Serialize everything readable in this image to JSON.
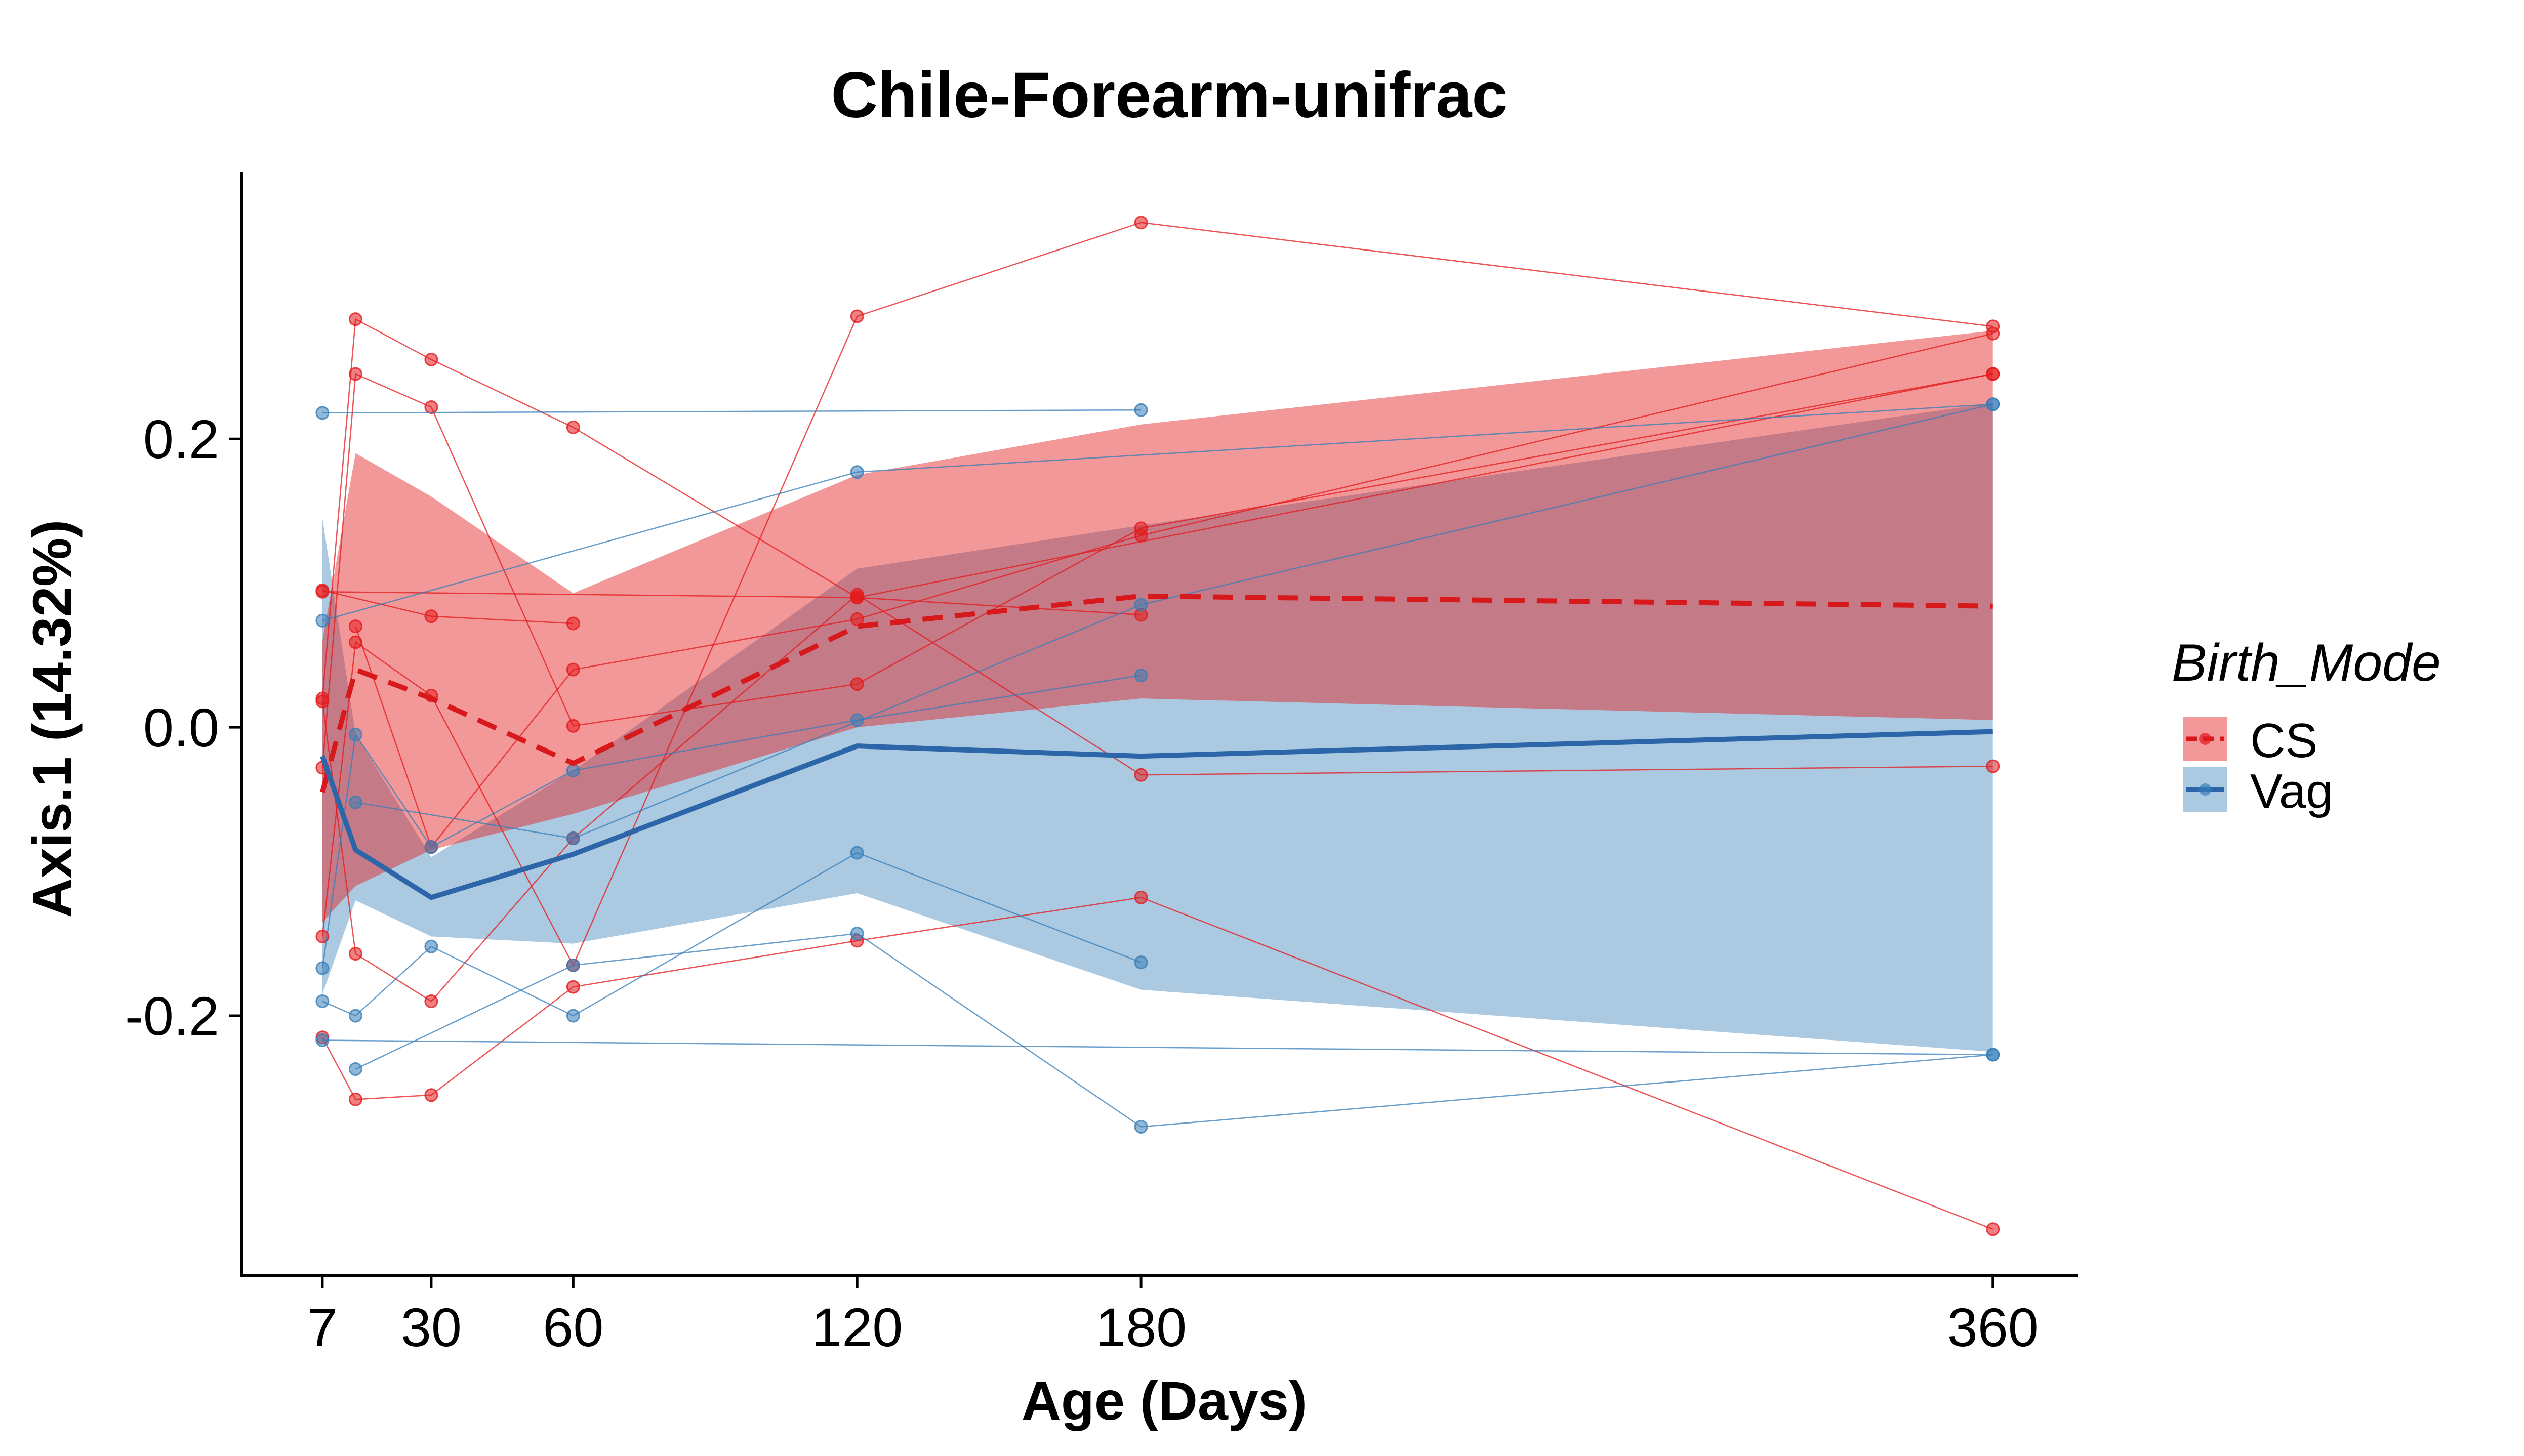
{
  "chart_data": {
    "type": "line",
    "title": "Chile-Forearm-unifrac",
    "xlabel": "Age (Days)",
    "ylabel": "Axis.1 (14.32%)",
    "x_ticks": [
      7,
      30,
      60,
      120,
      180,
      360
    ],
    "y_ticks": [
      -0.2,
      0.0,
      0.2
    ],
    "y_tick_labels": [
      "-0.2",
      "0.0",
      "0.2"
    ],
    "xlim": [
      -10,
      378
    ],
    "ylim": [
      -0.38,
      0.385
    ],
    "grid": false,
    "legend": {
      "title": "Birth_Mode",
      "placement": "right",
      "entries": [
        "CS",
        "Vag"
      ]
    },
    "colors": {
      "CS": "#e41a1c",
      "Vag": "#377eb8",
      "CS_line": "#d7191c",
      "Vag_line": "#2c66a8"
    },
    "series": [
      {
        "name": "CS",
        "line_style": "dashed",
        "mean": {
          "x": [
            7,
            14,
            30,
            60,
            120,
            180,
            360
          ],
          "y": [
            -0.045,
            0.04,
            0.02,
            -0.025,
            0.07,
            0.091,
            0.084
          ]
        },
        "band": {
          "x": [
            7,
            14,
            30,
            60,
            120,
            180,
            360
          ],
          "lower": [
            -0.135,
            -0.11,
            -0.085,
            -0.06,
            0.0,
            0.02,
            0.005
          ],
          "upper": [
            0.06,
            0.19,
            0.16,
            0.093,
            0.175,
            0.21,
            0.275
          ]
        },
        "subjects": [
          [
            [
              7,
              0.095
            ],
            [
              30,
              0.077
            ],
            [
              60,
              0.072
            ]
          ],
          [
            [
              7,
              0.02
            ],
            [
              14,
              0.283
            ],
            [
              30,
              0.255
            ],
            [
              60,
              0.208
            ],
            [
              120,
              0.09
            ],
            [
              180,
              0.078
            ]
          ],
          [
            [
              7,
              -0.028
            ],
            [
              14,
              0.245
            ],
            [
              30,
              0.222
            ],
            [
              60,
              0.001
            ],
            [
              120,
              0.03
            ],
            [
              180,
              0.138
            ],
            [
              360,
              0.245
            ]
          ],
          [
            [
              7,
              -0.145
            ],
            [
              14,
              0.059
            ],
            [
              30,
              0.022
            ],
            [
              60,
              -0.165
            ],
            [
              120,
              0.285
            ],
            [
              180,
              0.35
            ],
            [
              360,
              0.278
            ]
          ],
          [
            [
              7,
              -0.215
            ],
            [
              14,
              -0.258
            ],
            [
              30,
              -0.255
            ],
            [
              60,
              -0.18
            ],
            [
              120,
              -0.148
            ],
            [
              180,
              -0.118
            ],
            [
              360,
              -0.348
            ]
          ],
          [
            [
              7,
              0.018
            ],
            [
              14,
              -0.157
            ],
            [
              30,
              -0.19
            ],
            [
              60,
              -0.077
            ],
            [
              120,
              0.092
            ],
            [
              180,
              -0.033
            ],
            [
              360,
              -0.027
            ]
          ],
          [
            [
              14,
              0.07
            ],
            [
              30,
              -0.083
            ],
            [
              60,
              0.04
            ],
            [
              120,
              0.075
            ],
            [
              180,
              0.133
            ],
            [
              360,
              0.273
            ]
          ],
          [
            [
              7,
              0.094
            ],
            [
              120,
              0.09
            ],
            [
              360,
              0.245
            ]
          ]
        ]
      },
      {
        "name": "Vag",
        "line_style": "solid",
        "mean": {
          "x": [
            7,
            14,
            30,
            60,
            120,
            180,
            360
          ],
          "y": [
            -0.02,
            -0.085,
            -0.118,
            -0.088,
            -0.013,
            -0.02,
            -0.003
          ]
        },
        "band": {
          "x": [
            7,
            14,
            30,
            60,
            120,
            180,
            360
          ],
          "lower": [
            -0.185,
            -0.12,
            -0.145,
            -0.15,
            -0.115,
            -0.182,
            -0.225
          ],
          "upper": [
            0.145,
            -0.005,
            -0.09,
            -0.03,
            0.11,
            0.14,
            0.225
          ]
        },
        "subjects": [
          [
            [
              7,
              0.218
            ],
            [
              180,
              0.22
            ]
          ],
          [
            [
              7,
              0.074
            ],
            [
              120,
              0.177
            ],
            [
              360,
              0.224
            ]
          ],
          [
            [
              7,
              -0.167
            ],
            [
              14,
              -0.005
            ],
            [
              30,
              -0.083
            ],
            [
              60,
              -0.03
            ],
            [
              120,
              0.005
            ],
            [
              180,
              0.036
            ]
          ],
          [
            [
              7,
              -0.19
            ],
            [
              14,
              -0.2
            ],
            [
              30,
              -0.152
            ],
            [
              60,
              -0.2
            ],
            [
              120,
              -0.087
            ],
            [
              180,
              -0.163
            ]
          ],
          [
            [
              14,
              -0.237
            ],
            [
              60,
              -0.165
            ],
            [
              120,
              -0.143
            ],
            [
              180,
              -0.277
            ],
            [
              360,
              -0.227
            ]
          ],
          [
            [
              7,
              -0.217
            ],
            [
              360,
              -0.227
            ]
          ],
          [
            [
              14,
              -0.052
            ],
            [
              60,
              -0.077
            ],
            [
              180,
              0.085
            ],
            [
              360,
              0.224
            ]
          ]
        ]
      }
    ]
  }
}
